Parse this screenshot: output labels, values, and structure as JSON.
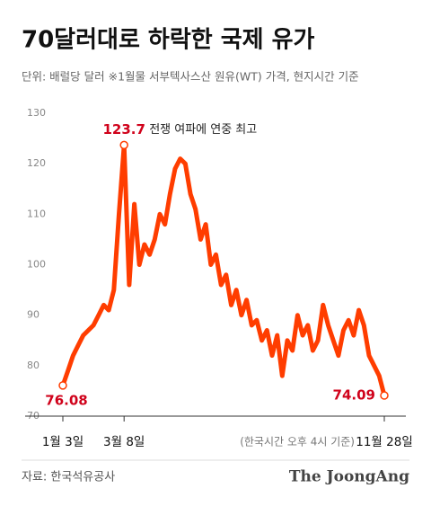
{
  "chart_data": {
    "type": "line",
    "title": "70달러대로 하락한 국제 유가",
    "subtitle": "단위: 배럴당 달러  ※1월물 서부텍사스산 원유(WT) 가격, 현지시간 기준",
    "annotation": "전쟁 여파에 연중 최고",
    "note": "(한국시간 오후 4시 기준)",
    "source": "자료: 한국석유공사",
    "brand": "The JoongAng",
    "categories": [
      "1월 3일",
      null,
      null,
      null,
      null,
      null,
      null,
      null,
      null,
      null,
      null,
      null,
      "3월 8일",
      null,
      null,
      null,
      null,
      null,
      null,
      null,
      null,
      null,
      null,
      null,
      null,
      null,
      null,
      null,
      null,
      null,
      null,
      null,
      null,
      null,
      null,
      null,
      null,
      null,
      null,
      null,
      null,
      null,
      null,
      null,
      null,
      null,
      null,
      null,
      null,
      null,
      null,
      null,
      null,
      null,
      null,
      null,
      null,
      null,
      null,
      null,
      null,
      null,
      null,
      "11월 28일"
    ],
    "series": [
      {
        "name": "WTI",
        "color": "#ff3d00",
        "values": [
          76.08,
          79,
          82,
          84,
          86,
          87,
          88,
          90,
          92,
          91,
          95,
          110,
          123.7,
          96,
          112,
          100,
          104,
          102,
          105,
          110,
          108,
          114,
          119,
          121,
          120,
          114,
          111,
          105,
          108,
          100,
          102,
          96,
          98,
          92,
          95,
          90,
          93,
          88,
          89,
          85,
          87,
          82,
          86,
          78,
          85,
          83,
          90,
          86,
          88,
          83,
          85,
          92,
          88,
          85,
          82,
          87,
          89,
          86,
          91,
          88,
          82,
          80,
          78,
          74.09
        ]
      }
    ],
    "ylim": [
      70,
      130
    ],
    "yticks": [
      70,
      80,
      90,
      100,
      110,
      120,
      130
    ],
    "grid": false
  }
}
